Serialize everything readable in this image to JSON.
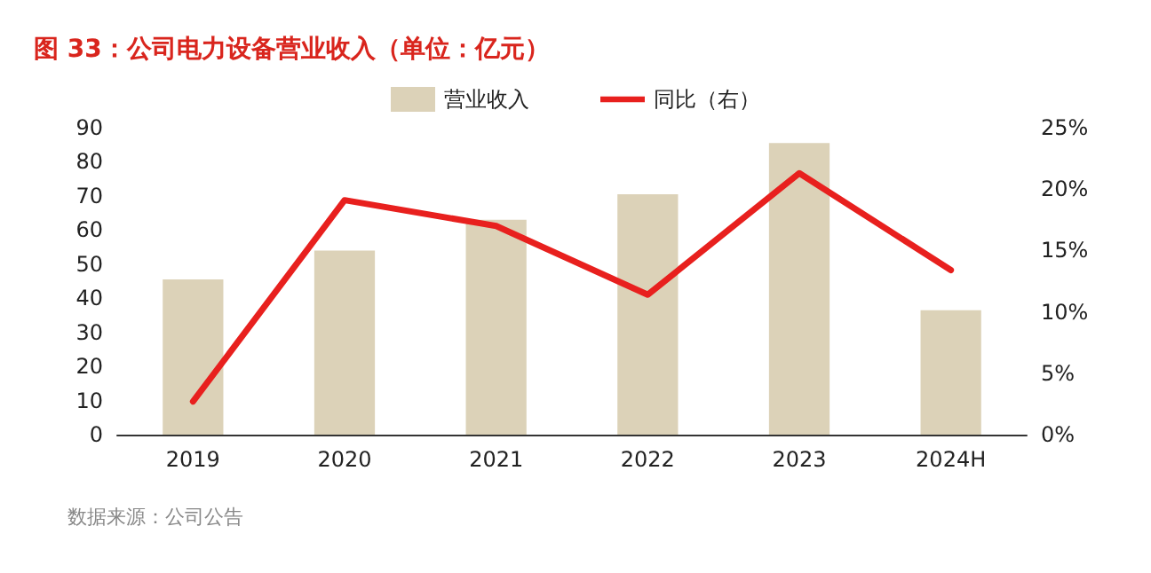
{
  "chart_data": {
    "type": "bar",
    "title": "图 33：公司电力设备营业收入（单位：亿元）",
    "annotations": [
      "数据来源：公司公告"
    ],
    "categories": [
      "2019",
      "2020",
      "2021",
      "2022",
      "2023",
      "2024H"
    ],
    "series": [
      {
        "name": "营业收入",
        "color": "#dcd2b8",
        "values": [
          45.5,
          54,
          63,
          70.5,
          85.5,
          36.5
        ]
      },
      {
        "name": "同比（右）",
        "type": "line",
        "axis": "y2",
        "color": "#e8201e",
        "values": [
          2.7,
          19.1,
          17.0,
          11.4,
          21.3,
          13.4
        ]
      }
    ],
    "ylim": [
      0,
      90
    ],
    "yticks": [
      0,
      10,
      20,
      30,
      40,
      50,
      60,
      70,
      80,
      90
    ],
    "y2lim": [
      0,
      25
    ],
    "y2ticks": [
      {
        "value": 0,
        "label": "0%"
      },
      {
        "value": 5,
        "label": "5%"
      },
      {
        "value": 10,
        "label": "10%"
      },
      {
        "value": 15,
        "label": "15%"
      },
      {
        "value": 20,
        "label": "20%"
      },
      {
        "value": 25,
        "label": "25%"
      }
    ],
    "legend": "top",
    "grid": false,
    "marker": "none",
    "line_style": "solid"
  }
}
